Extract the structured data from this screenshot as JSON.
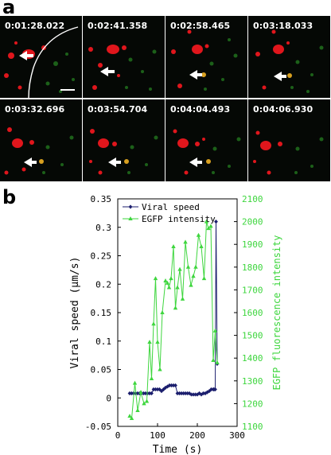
{
  "panel_a": {
    "letter": "a",
    "frames": [
      {
        "timestamp": "0:01:28.022"
      },
      {
        "timestamp": "0:02:41.358"
      },
      {
        "timestamp": "0:02:58.465"
      },
      {
        "timestamp": "0:03:18.033"
      },
      {
        "timestamp": "0:03:32.696"
      },
      {
        "timestamp": "0:03:54.704"
      },
      {
        "timestamp": "0:04:04.493"
      },
      {
        "timestamp": "0:04:06.930"
      }
    ],
    "colors": {
      "virus": "#e0161c",
      "membrane": "#2fa82a",
      "background": "#050805"
    }
  },
  "panel_b": {
    "letter": "b"
  },
  "chart_data": {
    "type": "line",
    "xlabel": "Time (s)",
    "ylabel_left": "Viral speed (μm/s)",
    "ylabel_right": "EGFP fluorescence intensity",
    "xlim": [
      0,
      300
    ],
    "xticks": [
      "0",
      "100",
      "200",
      "300"
    ],
    "ylim_left": [
      -0.05,
      0.35
    ],
    "yticks_left": [
      "-0.05",
      "0",
      "0.05",
      "0.1",
      "0.15",
      "0.2",
      "0.25",
      "0.3",
      "0.35"
    ],
    "ylim_right": [
      1100,
      2100
    ],
    "yticks_right": [
      "1100",
      "1200",
      "1300",
      "1400",
      "1500",
      "1600",
      "1700",
      "1800",
      "1900",
      "2000",
      "2100"
    ],
    "legend_position": "top-left",
    "series": [
      {
        "name": "Viral speed",
        "axis": "left",
        "color": "#1c1f6e",
        "marker": "diamond",
        "x": [
          30,
          35,
          40,
          45,
          50,
          55,
          60,
          65,
          70,
          75,
          80,
          85,
          90,
          95,
          100,
          105,
          110,
          115,
          120,
          125,
          130,
          135,
          140,
          145,
          150,
          155,
          160,
          165,
          170,
          175,
          180,
          185,
          190,
          195,
          200,
          205,
          210,
          215,
          220,
          225,
          230,
          235,
          240,
          242,
          245,
          247,
          250
        ],
        "y": [
          0.008,
          0.008,
          0.008,
          0.008,
          0.008,
          0.008,
          0.008,
          0.008,
          0.008,
          0.008,
          0.008,
          0.008,
          0.015,
          0.015,
          0.015,
          0.015,
          0.012,
          0.015,
          0.018,
          0.02,
          0.022,
          0.022,
          0.022,
          0.022,
          0.008,
          0.008,
          0.008,
          0.008,
          0.008,
          0.008,
          0.008,
          0.006,
          0.006,
          0.006,
          0.006,
          0.008,
          0.006,
          0.008,
          0.008,
          0.01,
          0.012,
          0.015,
          0.015,
          0.015,
          0.015,
          0.31,
          0.06
        ]
      },
      {
        "name": "EGFP intensity",
        "axis": "right",
        "color": "#3ed63e",
        "marker": "triangle",
        "x": [
          30,
          35,
          43,
          50,
          58,
          66,
          73,
          80,
          85,
          90,
          95,
          100,
          106,
          112,
          120,
          125,
          129,
          134,
          140,
          145,
          150,
          156,
          163,
          170,
          177,
          184,
          190,
          196,
          203,
          210,
          217,
          223,
          228,
          234,
          240,
          245,
          250
        ],
        "y": [
          1145,
          1135,
          1290,
          1170,
          1250,
          1200,
          1210,
          1470,
          1310,
          1550,
          1750,
          1470,
          1350,
          1600,
          1740,
          1730,
          1710,
          1750,
          1890,
          1620,
          1710,
          1790,
          1660,
          1910,
          1800,
          1720,
          1760,
          1800,
          1940,
          1890,
          1750,
          2000,
          1970,
          1980,
          1390,
          1520,
          1380
        ]
      }
    ]
  }
}
